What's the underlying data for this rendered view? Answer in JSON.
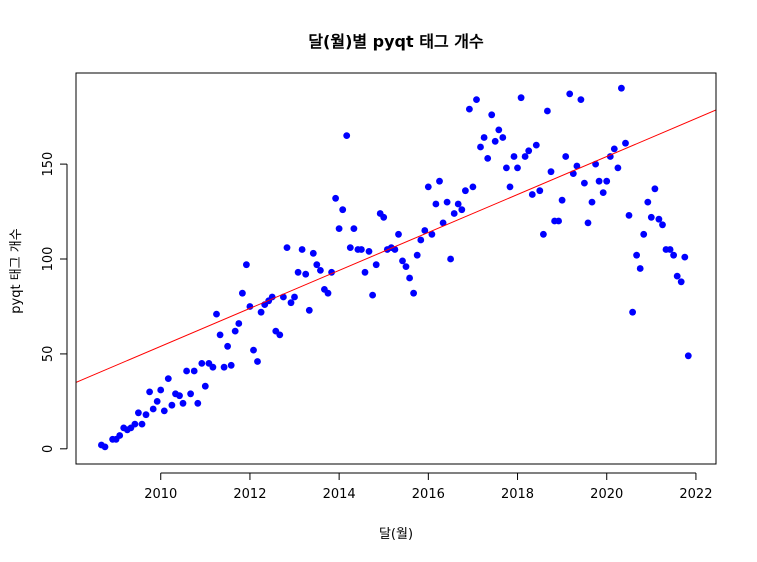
{
  "chart_data": {
    "type": "scatter",
    "title": "달(월)별 pyqt 태그 개수",
    "xlabel": "달(월)",
    "ylabel": "pyqt 태그 개수",
    "xlim": [
      2008.1,
      2022.45
    ],
    "ylim": [
      -8,
      198
    ],
    "xticks": [
      2010,
      2012,
      2014,
      2016,
      2018,
      2020,
      2022
    ],
    "yticks": [
      0,
      50,
      100,
      150
    ],
    "point_color": "#0000ff",
    "line_color": "#ff0000",
    "trend_line": {
      "slope": 10.0,
      "intercept": -20046
    },
    "series": [
      {
        "name": "pyqt",
        "points": [
          [
            2008.67,
            2
          ],
          [
            2008.75,
            1
          ],
          [
            2008.92,
            5
          ],
          [
            2009.0,
            5
          ],
          [
            2009.08,
            7
          ],
          [
            2009.17,
            11
          ],
          [
            2009.25,
            10
          ],
          [
            2009.33,
            11
          ],
          [
            2009.42,
            13
          ],
          [
            2009.5,
            19
          ],
          [
            2009.58,
            13
          ],
          [
            2009.67,
            18
          ],
          [
            2009.75,
            30
          ],
          [
            2009.83,
            21
          ],
          [
            2009.92,
            25
          ],
          [
            2010.0,
            31
          ],
          [
            2010.08,
            20
          ],
          [
            2010.17,
            37
          ],
          [
            2010.25,
            23
          ],
          [
            2010.33,
            29
          ],
          [
            2010.42,
            28
          ],
          [
            2010.5,
            24
          ],
          [
            2010.58,
            41
          ],
          [
            2010.67,
            29
          ],
          [
            2010.75,
            41
          ],
          [
            2010.83,
            24
          ],
          [
            2010.92,
            45
          ],
          [
            2011.0,
            33
          ],
          [
            2011.08,
            45
          ],
          [
            2011.17,
            43
          ],
          [
            2011.25,
            71
          ],
          [
            2011.33,
            60
          ],
          [
            2011.42,
            43
          ],
          [
            2011.5,
            54
          ],
          [
            2011.58,
            44
          ],
          [
            2011.67,
            62
          ],
          [
            2011.75,
            66
          ],
          [
            2011.83,
            82
          ],
          [
            2011.92,
            97
          ],
          [
            2012.0,
            75
          ],
          [
            2012.08,
            52
          ],
          [
            2012.17,
            46
          ],
          [
            2012.25,
            72
          ],
          [
            2012.33,
            76
          ],
          [
            2012.42,
            78
          ],
          [
            2012.5,
            80
          ],
          [
            2012.58,
            62
          ],
          [
            2012.67,
            60
          ],
          [
            2012.75,
            80
          ],
          [
            2012.83,
            106
          ],
          [
            2012.92,
            77
          ],
          [
            2013.0,
            80
          ],
          [
            2013.08,
            93
          ],
          [
            2013.17,
            105
          ],
          [
            2013.25,
            92
          ],
          [
            2013.33,
            73
          ],
          [
            2013.42,
            103
          ],
          [
            2013.5,
            97
          ],
          [
            2013.58,
            94
          ],
          [
            2013.67,
            84
          ],
          [
            2013.75,
            82
          ],
          [
            2013.83,
            93
          ],
          [
            2013.92,
            132
          ],
          [
            2014.0,
            116
          ],
          [
            2014.08,
            126
          ],
          [
            2014.17,
            165
          ],
          [
            2014.25,
            106
          ],
          [
            2014.33,
            116
          ],
          [
            2014.42,
            105
          ],
          [
            2014.5,
            105
          ],
          [
            2014.58,
            93
          ],
          [
            2014.67,
            104
          ],
          [
            2014.75,
            81
          ],
          [
            2014.83,
            97
          ],
          [
            2014.92,
            124
          ],
          [
            2015.0,
            122
          ],
          [
            2015.08,
            105
          ],
          [
            2015.17,
            106
          ],
          [
            2015.25,
            105
          ],
          [
            2015.33,
            113
          ],
          [
            2015.42,
            99
          ],
          [
            2015.5,
            96
          ],
          [
            2015.58,
            90
          ],
          [
            2015.67,
            82
          ],
          [
            2015.75,
            102
          ],
          [
            2015.83,
            110
          ],
          [
            2015.92,
            115
          ],
          [
            2016.0,
            138
          ],
          [
            2016.08,
            113
          ],
          [
            2016.17,
            129
          ],
          [
            2016.25,
            141
          ],
          [
            2016.33,
            119
          ],
          [
            2016.42,
            130
          ],
          [
            2016.5,
            100
          ],
          [
            2016.58,
            124
          ],
          [
            2016.67,
            129
          ],
          [
            2016.75,
            126
          ],
          [
            2016.83,
            136
          ],
          [
            2016.92,
            179
          ],
          [
            2017.0,
            138
          ],
          [
            2017.08,
            184
          ],
          [
            2017.17,
            159
          ],
          [
            2017.25,
            164
          ],
          [
            2017.33,
            153
          ],
          [
            2017.42,
            176
          ],
          [
            2017.5,
            162
          ],
          [
            2017.58,
            168
          ],
          [
            2017.67,
            164
          ],
          [
            2017.75,
            148
          ],
          [
            2017.83,
            138
          ],
          [
            2017.92,
            154
          ],
          [
            2018.0,
            148
          ],
          [
            2018.08,
            185
          ],
          [
            2018.17,
            154
          ],
          [
            2018.25,
            157
          ],
          [
            2018.33,
            134
          ],
          [
            2018.42,
            160
          ],
          [
            2018.5,
            136
          ],
          [
            2018.58,
            113
          ],
          [
            2018.67,
            178
          ],
          [
            2018.75,
            146
          ],
          [
            2018.83,
            120
          ],
          [
            2018.92,
            120
          ],
          [
            2019.0,
            131
          ],
          [
            2019.08,
            154
          ],
          [
            2019.17,
            187
          ],
          [
            2019.25,
            145
          ],
          [
            2019.33,
            149
          ],
          [
            2019.42,
            184
          ],
          [
            2019.5,
            140
          ],
          [
            2019.58,
            119
          ],
          [
            2019.67,
            130
          ],
          [
            2019.75,
            150
          ],
          [
            2019.83,
            141
          ],
          [
            2019.92,
            135
          ],
          [
            2020.0,
            141
          ],
          [
            2020.08,
            154
          ],
          [
            2020.17,
            158
          ],
          [
            2020.25,
            148
          ],
          [
            2020.33,
            190
          ],
          [
            2020.42,
            161
          ],
          [
            2020.5,
            123
          ],
          [
            2020.58,
            72
          ],
          [
            2020.67,
            102
          ],
          [
            2020.75,
            95
          ],
          [
            2020.83,
            113
          ],
          [
            2020.92,
            130
          ],
          [
            2021.0,
            122
          ],
          [
            2021.08,
            137
          ],
          [
            2021.17,
            121
          ],
          [
            2021.25,
            118
          ],
          [
            2021.33,
            105
          ],
          [
            2021.42,
            105
          ],
          [
            2021.5,
            102
          ],
          [
            2021.58,
            91
          ],
          [
            2021.67,
            88
          ],
          [
            2021.75,
            101
          ],
          [
            2021.83,
            49
          ]
        ]
      }
    ]
  }
}
